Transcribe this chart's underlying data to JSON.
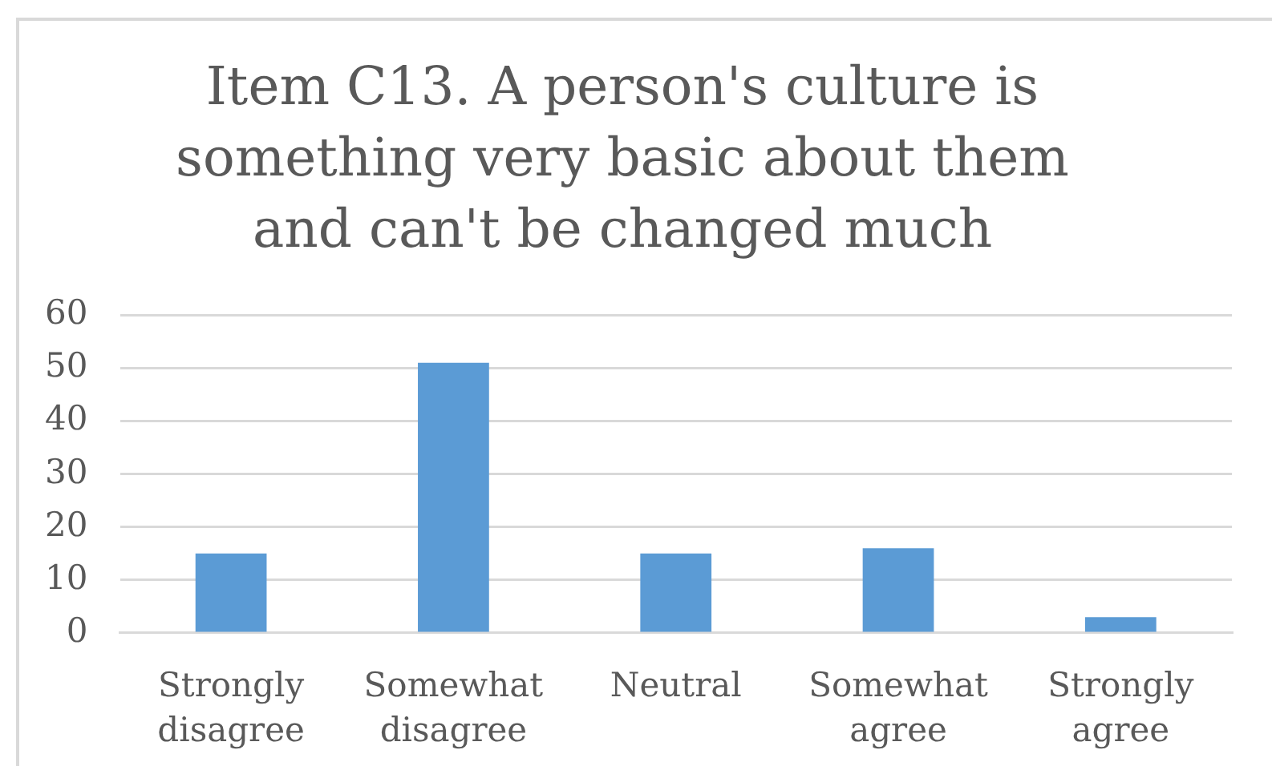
{
  "chart_data": {
    "type": "bar",
    "title": "Item C13. A person's culture is something very basic about them and can't be changed much",
    "categories": [
      "Strongly disagree",
      "Somewhat disagree",
      "Neutral",
      "Somewhat agree",
      "Strongly agree"
    ],
    "values": [
      15,
      51,
      15,
      16,
      3
    ],
    "color": "#5b9bd5",
    "ylim": [
      0,
      60
    ],
    "yticks": [
      0,
      10,
      20,
      30,
      40,
      50,
      60
    ],
    "grid": "y"
  }
}
